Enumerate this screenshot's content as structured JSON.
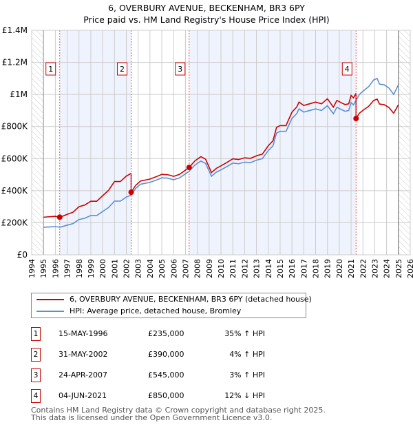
{
  "chart_data": {
    "type": "line",
    "title": "6, OVERBURY AVENUE, BECKENHAM, BR3 6PY",
    "subtitle": "Price paid vs. HM Land Registry's House Price Index (HPI)",
    "xlim": [
      1994,
      2026
    ],
    "ylim": [
      0,
      1400000
    ],
    "x_ticks": [
      "1994",
      "1995",
      "1996",
      "1997",
      "1998",
      "1999",
      "2000",
      "2001",
      "2002",
      "2003",
      "2004",
      "2005",
      "2006",
      "2007",
      "2008",
      "2009",
      "2010",
      "2011",
      "2012",
      "2013",
      "2014",
      "2015",
      "2016",
      "2017",
      "2018",
      "2019",
      "2020",
      "2021",
      "2022",
      "2023",
      "2024",
      "2025",
      "2026"
    ],
    "y_ticks": [
      {
        "v": 0,
        "label": "£0"
      },
      {
        "v": 200000,
        "label": "£200K"
      },
      {
        "v": 400000,
        "label": "£400K"
      },
      {
        "v": 600000,
        "label": "£600K"
      },
      {
        "v": 800000,
        "label": "£800K"
      },
      {
        "v": 1000000,
        "label": "£1M"
      },
      {
        "v": 1200000,
        "label": "£1.2M"
      },
      {
        "v": 1400000,
        "label": "£1.4M"
      }
    ],
    "hatched_ranges": [
      [
        1994,
        1995
      ],
      [
        2025,
        2026
      ]
    ],
    "colors": {
      "property": "#cc0000",
      "hpi": "#5b8fd4",
      "shade": "#eef3fd"
    },
    "hpi_series": {
      "name": "HPI: Average price, detached house, Bromley",
      "x": [
        1995.0,
        1996.0,
        1996.4,
        1997.0,
        1997.5,
        1998.0,
        1998.5,
        1999.0,
        1999.5,
        2000.0,
        2000.5,
        2001.0,
        2001.5,
        2002.0,
        2002.4,
        2002.8,
        2003.2,
        2004.0,
        2004.5,
        2005.0,
        2005.5,
        2006.0,
        2006.5,
        2007.0,
        2007.3,
        2007.8,
        2008.3,
        2008.7,
        2009.2,
        2009.6,
        2010.0,
        2010.5,
        2011.0,
        2011.5,
        2012.0,
        2012.5,
        2013.0,
        2013.5,
        2014.0,
        2014.4,
        2014.7,
        2015.0,
        2015.5,
        2016.0,
        2016.4,
        2016.6,
        2017.0,
        2017.5,
        2018.0,
        2018.5,
        2019.0,
        2019.5,
        2019.8,
        2020.2,
        2020.5,
        2020.8,
        2021.0,
        2021.2,
        2021.4,
        2021.7,
        2022.0,
        2022.5,
        2022.9,
        2023.2,
        2023.4,
        2023.8,
        2024.2,
        2024.6,
        2025.0
      ],
      "y": [
        172000,
        176000,
        172000,
        185000,
        195000,
        220000,
        228000,
        245000,
        245000,
        270000,
        295000,
        335000,
        335000,
        360000,
        372000,
        415000,
        440000,
        452000,
        465000,
        480000,
        478000,
        468000,
        480000,
        505000,
        520000,
        560000,
        585000,
        570000,
        490000,
        515000,
        530000,
        550000,
        572000,
        568000,
        578000,
        575000,
        590000,
        600000,
        650000,
        680000,
        760000,
        770000,
        770000,
        850000,
        880000,
        910000,
        890000,
        900000,
        910000,
        900000,
        930000,
        880000,
        920000,
        905000,
        895000,
        900000,
        950000,
        935000,
        960000,
        1000000,
        1020000,
        1050000,
        1090000,
        1100000,
        1065000,
        1060000,
        1040000,
        1000000,
        1060000
      ]
    },
    "property_series": {
      "name": "6, OVERBURY AVENUE, BECKENHAM, BR3 6PY (detached house)"
    },
    "sales": [
      {
        "label": "1",
        "x": 1996.37,
        "date": "15-MAY-1996",
        "price": 235000,
        "price_text": "£235,000",
        "hpi_text": "35% ↑ HPI"
      },
      {
        "label": "2",
        "x": 2002.41,
        "date": "31-MAY-2002",
        "price": 390000,
        "price_text": "£390,000",
        "hpi_text": "4% ↑ HPI"
      },
      {
        "label": "3",
        "x": 2007.31,
        "date": "24-APR-2007",
        "price": 545000,
        "price_text": "£545,000",
        "hpi_text": "3% ↑ HPI"
      },
      {
        "label": "4",
        "x": 2021.42,
        "date": "04-JUN-2021",
        "price": 850000,
        "price_text": "£850,000",
        "hpi_text": "12% ↓ HPI"
      }
    ]
  },
  "legend": {
    "property": "6, OVERBURY AVENUE, BECKENHAM, BR3 6PY (detached house)",
    "hpi": "HPI: Average price, detached house, Bromley"
  },
  "footer": {
    "line1": "Contains HM Land Registry data © Crown copyright and database right 2025.",
    "line2": "This data is licensed under the Open Government Licence v3.0."
  }
}
